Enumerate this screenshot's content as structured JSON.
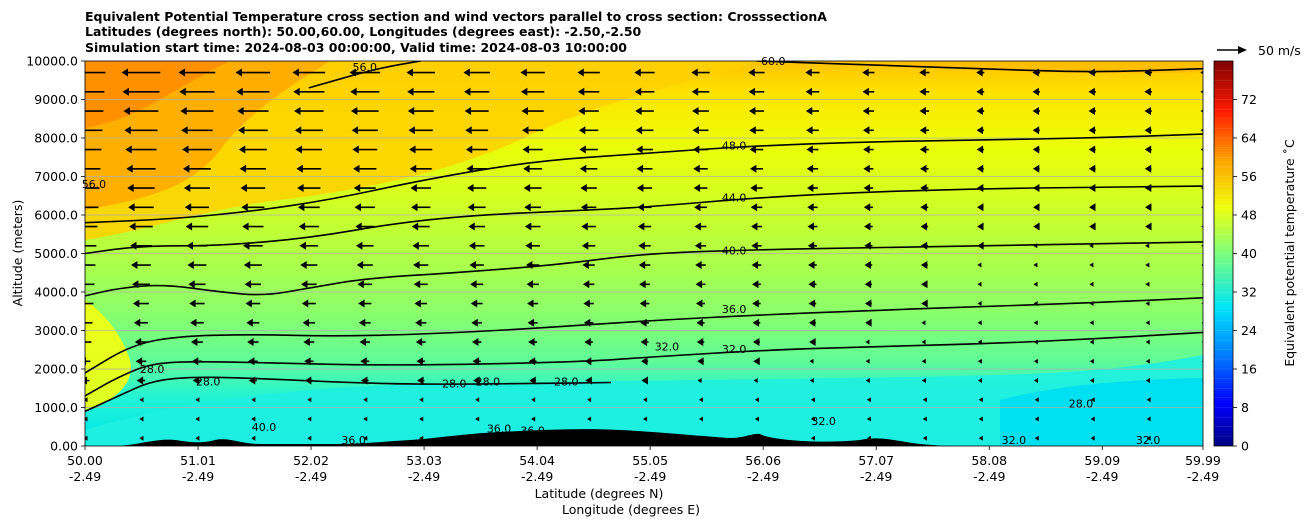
{
  "chart_data": {
    "type": "contour",
    "title_lines": [
      "Equivalent Potential Temperature cross section and wind vectors parallel to cross section: CrosssectionA",
      "Latitudes (degrees north): 50.00,60.00, Longitudes (degrees east): -2.50,-2.50",
      "Simulation start time: 2024-08-03 00:00:00, Valid time: 2024-08-03 10:00:00"
    ],
    "ylabel": "Altitude (meters)",
    "xlabel": "Latitude (degrees N)",
    "xlabel2": "Longitude (degrees E)",
    "ylim": [
      0,
      10000
    ],
    "xlim": [
      50.0,
      59.99
    ],
    "y_ticks": [
      0,
      1000,
      2000,
      3000,
      4000,
      5000,
      6000,
      7000,
      8000,
      9000,
      10000
    ],
    "y_tick_labels": [
      "0.00",
      "1000.0",
      "2000.0",
      "3000.0",
      "4000.0",
      "5000.0",
      "6000.0",
      "7000.0",
      "8000.0",
      "9000.0",
      "10000.0"
    ],
    "x_ticks": [
      50.0,
      51.01,
      52.02,
      53.03,
      54.04,
      55.05,
      56.06,
      57.07,
      58.08,
      59.09,
      59.99
    ],
    "x_tick_labels_lat": [
      "50.00",
      "51.01",
      "52.02",
      "53.03",
      "54.04",
      "55.05",
      "56.06",
      "57.07",
      "58.08",
      "59.09",
      "59.99"
    ],
    "x_tick_labels_lon": [
      "-2.49",
      "-2.49",
      "-2.49",
      "-2.49",
      "-2.49",
      "-2.49",
      "-2.49",
      "-2.49",
      "-2.49",
      "-2.49",
      "-2.49"
    ],
    "colorbar": {
      "label": "Equivalent potential temperature ˚C",
      "min": 0,
      "max": 80,
      "ticks": [
        0,
        8,
        16,
        24,
        32,
        40,
        48,
        56,
        64,
        72
      ],
      "tick_labels": [
        "0",
        "8",
        "16",
        "24",
        "32",
        "40",
        "48",
        "56",
        "64",
        "72"
      ]
    },
    "quiver_key": {
      "label": "50 m/s",
      "speed": 50
    },
    "contours": [
      {
        "level": 28,
        "label": "28.0",
        "points": [
          [
            50.0,
            900
          ],
          [
            50.3,
            1300
          ],
          [
            50.6,
            1700
          ],
          [
            51.0,
            1800
          ],
          [
            51.6,
            1750
          ],
          [
            52.3,
            1650
          ],
          [
            53.0,
            1600
          ],
          [
            54.0,
            1620
          ],
          [
            54.7,
            1650
          ]
        ]
      },
      {
        "level": 32,
        "label": "32.0",
        "points": [
          [
            50.0,
            1300
          ],
          [
            50.3,
            1800
          ],
          [
            50.6,
            2150
          ],
          [
            51.0,
            2200
          ],
          [
            51.8,
            2150
          ],
          [
            52.5,
            2100
          ],
          [
            53.5,
            2120
          ],
          [
            54.5,
            2200
          ],
          [
            55.0,
            2300
          ],
          [
            56.0,
            2480
          ],
          [
            57.0,
            2580
          ],
          [
            58.0,
            2650
          ],
          [
            59.0,
            2780
          ],
          [
            59.99,
            2950
          ]
        ]
      },
      {
        "level": 36,
        "label": "36.0",
        "points": [
          [
            50.0,
            1900
          ],
          [
            50.4,
            2600
          ],
          [
            50.8,
            2850
          ],
          [
            51.5,
            2900
          ],
          [
            52.2,
            2850
          ],
          [
            53.0,
            2900
          ],
          [
            54.0,
            3050
          ],
          [
            55.0,
            3250
          ],
          [
            56.0,
            3400
          ],
          [
            57.0,
            3520
          ],
          [
            58.0,
            3620
          ],
          [
            59.0,
            3720
          ],
          [
            59.99,
            3850
          ]
        ]
      },
      {
        "level": 40,
        "label": "40.0",
        "points": [
          [
            50.0,
            3900
          ],
          [
            50.3,
            4100
          ],
          [
            50.7,
            4200
          ],
          [
            51.2,
            4000
          ],
          [
            51.6,
            3900
          ],
          [
            52.0,
            4100
          ],
          [
            52.5,
            4350
          ],
          [
            53.3,
            4500
          ],
          [
            54.2,
            4700
          ],
          [
            55.0,
            5000
          ],
          [
            56.0,
            5100
          ],
          [
            57.0,
            5150
          ],
          [
            58.0,
            5200
          ],
          [
            59.0,
            5250
          ],
          [
            59.99,
            5300
          ]
        ]
      },
      {
        "level": 44,
        "label": "44.0",
        "points": [
          [
            50.0,
            5000
          ],
          [
            50.5,
            5200
          ],
          [
            51.2,
            5200
          ],
          [
            52.0,
            5400
          ],
          [
            52.8,
            5800
          ],
          [
            53.5,
            6000
          ],
          [
            54.3,
            6100
          ],
          [
            55.0,
            6200
          ],
          [
            56.0,
            6450
          ],
          [
            57.0,
            6600
          ],
          [
            58.0,
            6680
          ],
          [
            59.0,
            6720
          ],
          [
            59.99,
            6750
          ]
        ]
      },
      {
        "level": 48,
        "label": "48.0",
        "points": [
          [
            50.0,
            5800
          ],
          [
            50.8,
            5900
          ],
          [
            51.5,
            6100
          ],
          [
            52.2,
            6400
          ],
          [
            53.0,
            6900
          ],
          [
            54.0,
            7400
          ],
          [
            55.0,
            7600
          ],
          [
            56.0,
            7800
          ],
          [
            57.0,
            7900
          ],
          [
            58.0,
            7950
          ],
          [
            59.0,
            8000
          ],
          [
            59.99,
            8100
          ]
        ]
      },
      {
        "level": 56,
        "label": "56.0",
        "points": [
          [
            52.0,
            9300
          ],
          [
            52.6,
            9800
          ],
          [
            53.0,
            10000
          ]
        ]
      },
      {
        "level": 60,
        "label": "60.0",
        "points": [
          [
            56.0,
            10000
          ],
          [
            57.0,
            9900
          ],
          [
            58.0,
            9800
          ],
          [
            59.0,
            9700
          ],
          [
            59.99,
            9800
          ]
        ]
      }
    ],
    "contour_labels": [
      {
        "text": "56.0",
        "lat": 52.5,
        "alt": 9850
      },
      {
        "text": "60.0",
        "lat": 56.15,
        "alt": 10000
      },
      {
        "text": "48.0",
        "lat": 55.8,
        "alt": 7800
      },
      {
        "text": "44.0",
        "lat": 55.8,
        "alt": 6450
      },
      {
        "text": "40.0",
        "lat": 55.8,
        "alt": 5080
      },
      {
        "text": "36.0",
        "lat": 55.8,
        "alt": 3560
      },
      {
        "text": "32.0",
        "lat": 55.8,
        "alt": 2520
      },
      {
        "text": "32.0",
        "lat": 55.2,
        "alt": 2580
      },
      {
        "text": "28.0",
        "lat": 51.1,
        "alt": 1680
      },
      {
        "text": "28.0",
        "lat": 53.3,
        "alt": 1620
      },
      {
        "text": "28.0",
        "lat": 53.6,
        "alt": 1680
      },
      {
        "text": "28.0",
        "lat": 54.3,
        "alt": 1680
      },
      {
        "text": "28.0",
        "lat": 58.9,
        "alt": 1100
      },
      {
        "text": "32.0",
        "lat": 58.3,
        "alt": 50
      },
      {
        "text": "32.0",
        "lat": 59.5,
        "alt": 100
      },
      {
        "text": "40.0",
        "lat": 51.6,
        "alt": 500
      },
      {
        "text": "36.0",
        "lat": 52.4,
        "alt": 150
      },
      {
        "text": "36.0",
        "lat": 53.7,
        "alt": 450
      },
      {
        "text": "36.0",
        "lat": 54.0,
        "alt": 400
      },
      {
        "text": "32.0",
        "lat": 56.6,
        "alt": 650
      },
      {
        "text": "56.0",
        "lat": 50.08,
        "alt": 6800
      },
      {
        "text": "28.0",
        "lat": 50.6,
        "alt": 2000
      }
    ],
    "wind_description": "Winds parallel to cross section mostly easterly (pointing toward lower latitude), strongest at high altitude near 50-54N and weakening toward 60N and near the surface."
  }
}
